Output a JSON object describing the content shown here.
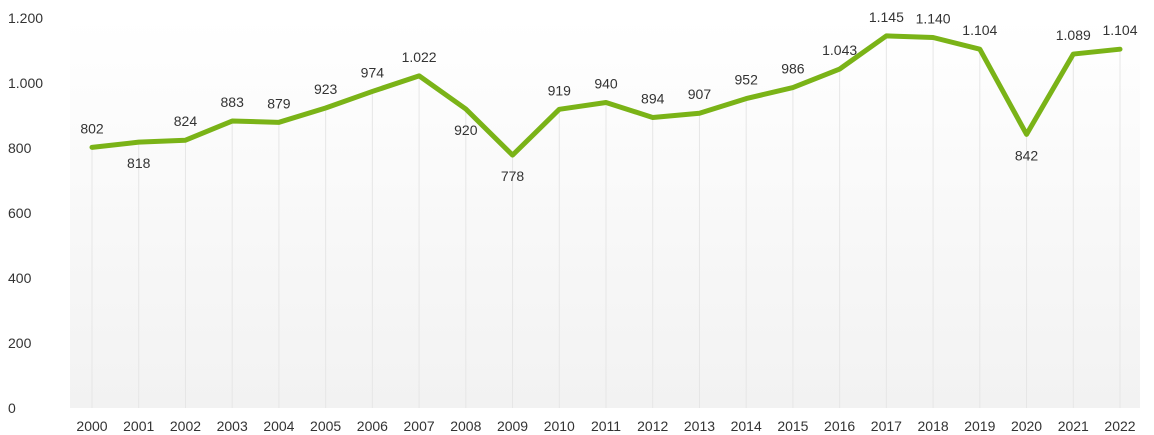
{
  "chart_data": {
    "type": "line",
    "title": "",
    "xlabel": "",
    "ylabel": "",
    "x": [
      "2000",
      "2001",
      "2002",
      "2003",
      "2004",
      "2005",
      "2006",
      "2007",
      "2008",
      "2009",
      "2010",
      "2011",
      "2012",
      "2013",
      "2014",
      "2015",
      "2016",
      "2017",
      "2018",
      "2019",
      "2020",
      "2021",
      "2022"
    ],
    "series": [
      {
        "values": [
          802,
          818,
          824,
          883,
          879,
          923,
          974,
          1022,
          920,
          778,
          919,
          940,
          894,
          907,
          952,
          986,
          1043,
          1145,
          1140,
          1104,
          842,
          1089,
          1104
        ],
        "color": "#7ab317"
      }
    ],
    "data_labels": [
      "802",
      "818",
      "824",
      "883",
      "879",
      "923",
      "974",
      "1.022",
      "920",
      "778",
      "919",
      "940",
      "894",
      "907",
      "952",
      "986",
      "1.043",
      "1.145",
      "1.140",
      "1.104",
      "842",
      "1.089",
      "1.104"
    ],
    "ylim": [
      0,
      1200
    ],
    "yticks": [
      0,
      200,
      400,
      600,
      800,
      1000,
      1200
    ],
    "ytick_labels": [
      "0",
      "200",
      "400",
      "600",
      "800",
      "1.000",
      "1.200"
    ],
    "grid": false,
    "legend": "none"
  }
}
